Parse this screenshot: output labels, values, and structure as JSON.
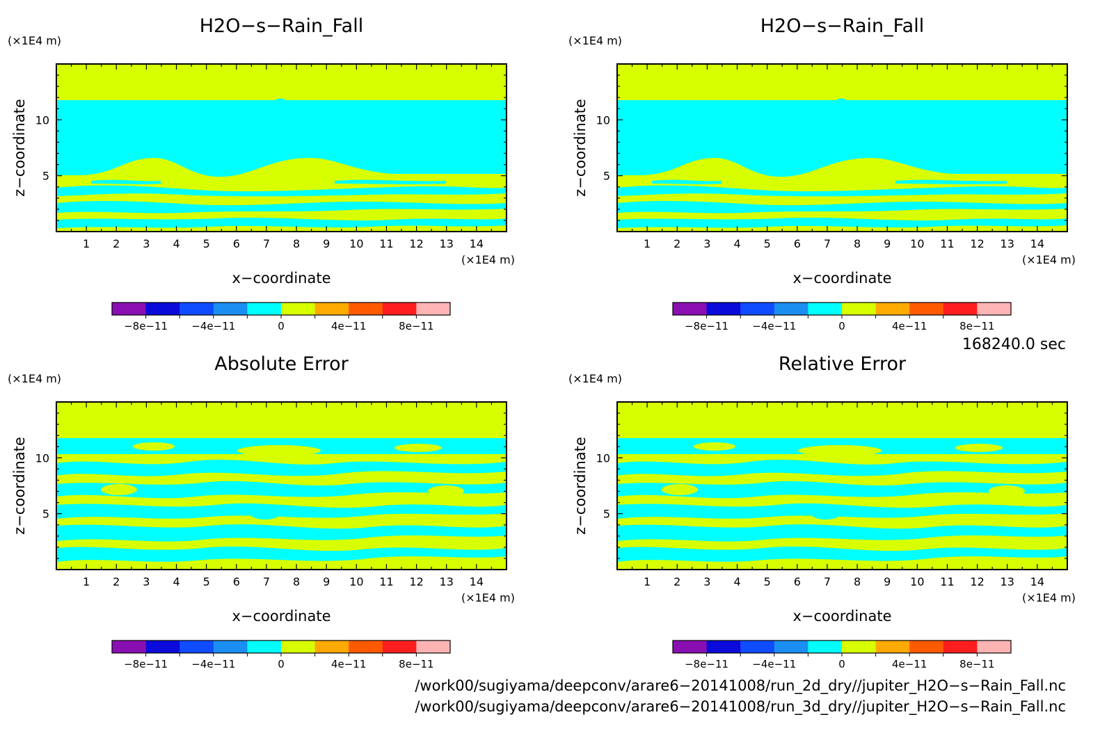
{
  "panel_titles": [
    "H2O−s−Rain_Fall",
    "H2O−s−Rain_Fall",
    "Absolute Error",
    "Relative Error"
  ],
  "xlabel": "x−coordinate",
  "ylabel": "z−coordinate",
  "unit_label": "(×1E4 m)",
  "xticks": [
    "1",
    "2",
    "3",
    "4",
    "5",
    "6",
    "7",
    "8",
    "9",
    "10",
    "11",
    "12",
    "13",
    "14"
  ],
  "yticks": [
    "5",
    "10"
  ],
  "colorbar": {
    "colors": [
      "#8a0fb2",
      "#0a0adb",
      "#0f4bff",
      "#1b8ef2",
      "#00ffff",
      "#d7ff00",
      "#ffaa00",
      "#ff5a00",
      "#ff1e1e",
      "#ffb4b4"
    ],
    "tick_labels": [
      "−8e−11",
      "−4e−11",
      "0",
      "4e−11",
      "8e−11"
    ]
  },
  "time_label": "168240.0 sec",
  "footer_lines": [
    "/work00/sugiyama/deepconv/arare6−20141008/run_2d_dry//jupiter_H2O−s−Rain_Fall.nc",
    "/work00/sugiyama/deepconv/arare6−20141008/run_3d_dry//jupiter_H2O−s−Rain_Fall.nc"
  ],
  "chart_data": [
    {
      "type": "heatmap",
      "title": "H2O−s−Rain_Fall",
      "xlabel": "x−coordinate",
      "ylabel": "z−coordinate",
      "x_unit": "×1E4 m",
      "z_unit": "×1E4 m",
      "xlim": [
        0,
        15
      ],
      "ylim": [
        0,
        15
      ],
      "color_levels": [
        -1e-10,
        -8e-11,
        -6e-11,
        -4e-11,
        -2e-11,
        0,
        2e-11,
        4e-11,
        6e-11,
        8e-11,
        1e-10
      ],
      "regions": [
        {
          "z_range": [
            11.8,
            15
          ],
          "class": "0 to 2e-11"
        },
        {
          "z_range": [
            5,
            11.8
          ],
          "class": "-2e-11 to 0"
        },
        {
          "z_range": [
            0,
            5
          ],
          "class": "layered bands alternating -2e-11..0 and 0..2e-11"
        }
      ]
    },
    {
      "type": "heatmap",
      "title": "H2O−s−Rain_Fall",
      "xlabel": "x−coordinate",
      "ylabel": "z−coordinate",
      "x_unit": "×1E4 m",
      "z_unit": "×1E4 m",
      "xlim": [
        0,
        15
      ],
      "ylim": [
        0,
        15
      ],
      "color_levels": [
        -1e-10,
        -8e-11,
        -6e-11,
        -4e-11,
        -2e-11,
        0,
        2e-11,
        4e-11,
        6e-11,
        8e-11,
        1e-10
      ],
      "regions": [
        {
          "z_range": [
            11.8,
            15
          ],
          "class": "0 to 2e-11"
        },
        {
          "z_range": [
            5,
            11.8
          ],
          "class": "-2e-11 to 0"
        },
        {
          "z_range": [
            0,
            5
          ],
          "class": "layered bands alternating -2e-11..0 and 0..2e-11"
        }
      ]
    },
    {
      "type": "heatmap",
      "title": "Absolute Error",
      "xlabel": "x−coordinate",
      "ylabel": "z−coordinate",
      "x_unit": "×1E4 m",
      "z_unit": "×1E4 m",
      "xlim": [
        0,
        15
      ],
      "ylim": [
        0,
        15
      ],
      "color_levels": [
        -1e-10,
        -8e-11,
        -6e-11,
        -4e-11,
        -2e-11,
        0,
        2e-11,
        4e-11,
        6e-11,
        8e-11,
        1e-10
      ],
      "regions": [
        {
          "z_range": [
            11.8,
            15
          ],
          "class": "0 to 2e-11"
        },
        {
          "z_range": [
            0,
            11.8
          ],
          "class": "mottled pattern alternating -2e-11..0 and 0..2e-11"
        }
      ]
    },
    {
      "type": "heatmap",
      "title": "Relative Error",
      "xlabel": "x−coordinate",
      "ylabel": "z−coordinate",
      "x_unit": "×1E4 m",
      "z_unit": "×1E4 m",
      "xlim": [
        0,
        15
      ],
      "ylim": [
        0,
        15
      ],
      "color_levels": [
        -1e-10,
        -8e-11,
        -6e-11,
        -4e-11,
        -2e-11,
        0,
        2e-11,
        4e-11,
        6e-11,
        8e-11,
        1e-10
      ],
      "regions": [
        {
          "z_range": [
            11.8,
            15
          ],
          "class": "0 to 2e-11"
        },
        {
          "z_range": [
            0,
            11.8
          ],
          "class": "mottled pattern alternating -2e-11..0 and 0..2e-11"
        }
      ]
    }
  ]
}
